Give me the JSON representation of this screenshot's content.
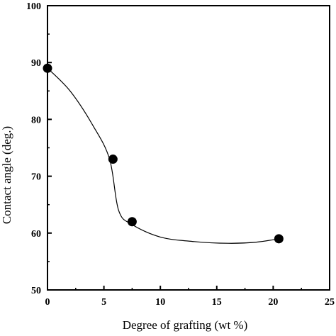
{
  "chart_data": {
    "type": "scatter",
    "title": "",
    "xlabel": "Degree of grafting (wt %)",
    "ylabel": "Contact angle (deg.)",
    "xlim": [
      0,
      25
    ],
    "ylim": [
      50,
      100
    ],
    "x_ticks": [
      0,
      5,
      10,
      15,
      20,
      25
    ],
    "y_ticks": [
      50,
      60,
      70,
      80,
      90,
      100
    ],
    "x_tick_labels": [
      "0",
      "5",
      "10",
      "15",
      "20",
      "25"
    ],
    "y_tick_labels": [
      "50",
      "60",
      "70",
      "80",
      "90",
      "100"
    ],
    "grid": false,
    "legend": "none",
    "series": [
      {
        "x": [
          0,
          5.8,
          7.5,
          20.5
        ],
        "y": [
          89,
          73,
          62,
          59
        ],
        "marker": "filled-circle",
        "line": "smooth-curve",
        "color": "#000000"
      }
    ],
    "curve": {
      "x": [
        0,
        2,
        4,
        5.5,
        6.3,
        7.5,
        10,
        13,
        16,
        18.5,
        20.5
      ],
      "y": [
        89,
        85,
        79,
        73,
        64,
        61.5,
        59.3,
        58.5,
        58.2,
        58.4,
        59
      ]
    }
  }
}
